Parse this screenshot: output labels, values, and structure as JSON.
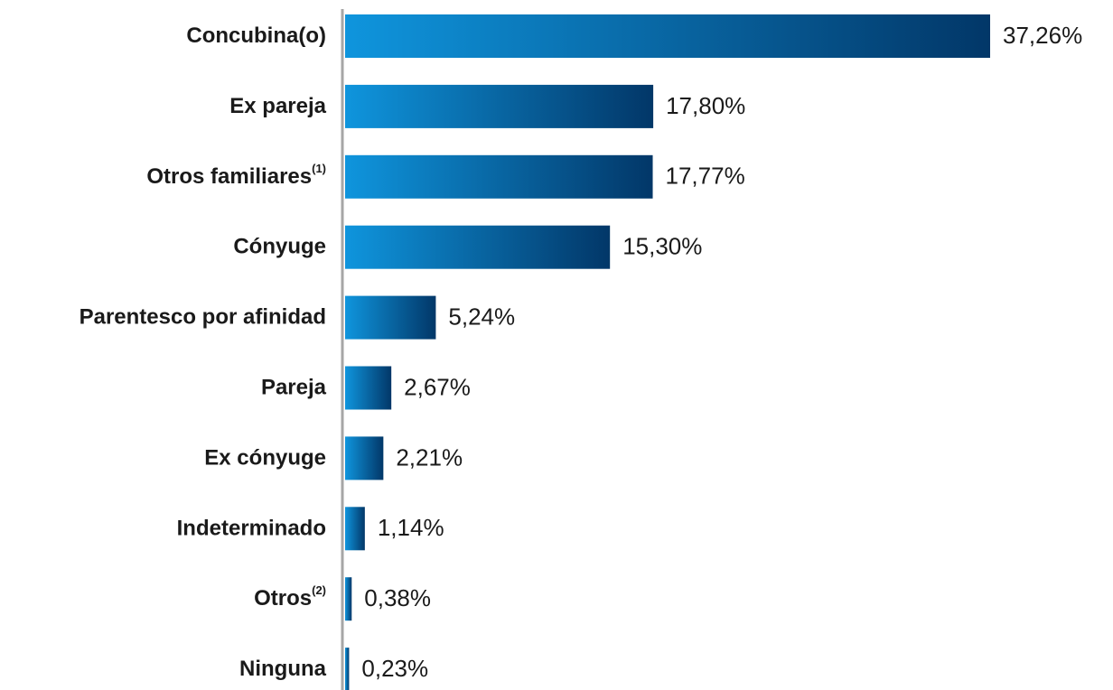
{
  "chart_data": {
    "type": "hbar",
    "categories": [
      "Concubina(o)",
      "Ex pareja",
      "Otros familiares",
      "Cónyuge",
      "Parentesco por afinidad",
      "Pareja",
      "Ex cónyuge",
      "Indeterminado",
      "Otros",
      "Ninguna"
    ],
    "category_superscripts": {
      "2": "(1)",
      "8": "(2)"
    },
    "values": [
      37.26,
      17.8,
      17.77,
      15.3,
      5.24,
      2.67,
      2.21,
      1.14,
      0.38,
      0.23
    ],
    "value_labels": [
      "37,26%",
      "17,80%",
      "17,77%",
      "15,30%",
      "5,24%",
      "2,67%",
      "2,21%",
      "1,14%",
      "0,38%",
      "0,23%"
    ],
    "color_start": "#0f95dd",
    "color_end": "#023768"
  }
}
